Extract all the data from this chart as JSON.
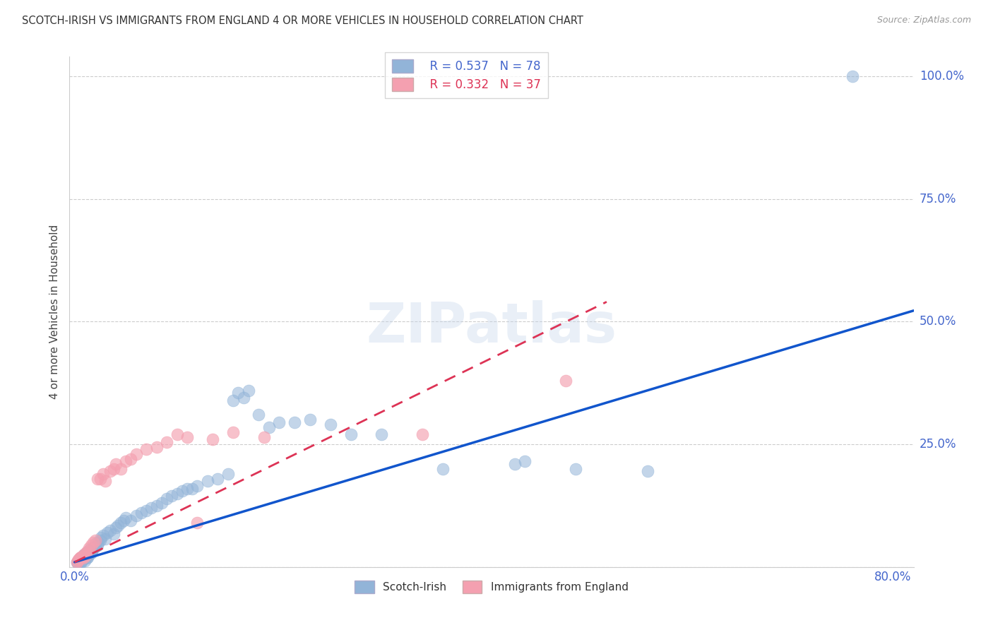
{
  "title": "SCOTCH-IRISH VS IMMIGRANTS FROM ENGLAND 4 OR MORE VEHICLES IN HOUSEHOLD CORRELATION CHART",
  "source": "Source: ZipAtlas.com",
  "ylabel": "4 or more Vehicles in Household",
  "xmin": 0.0,
  "xmax": 0.82,
  "ymin": 0.0,
  "ymax": 1.04,
  "xticks": [
    0.0,
    0.2,
    0.4,
    0.6,
    0.8
  ],
  "xticklabels": [
    "0.0%",
    "",
    "",
    "",
    "80.0%"
  ],
  "yticks": [
    0.0,
    0.25,
    0.5,
    0.75,
    1.0
  ],
  "yticklabels_right": [
    "",
    "25.0%",
    "50.0%",
    "75.0%",
    "100.0%"
  ],
  "legend_r1": "R = 0.537",
  "legend_n1": "N = 78",
  "legend_r2": "R = 0.332",
  "legend_n2": "N = 37",
  "blue_color": "#92B4D8",
  "pink_color": "#F4A0B0",
  "line_blue": "#1155CC",
  "line_pink": "#DD3355",
  "watermark": "ZIPatlas",
  "tick_color": "#4466CC",
  "scotch_irish_x": [
    0.002,
    0.003,
    0.004,
    0.005,
    0.005,
    0.006,
    0.006,
    0.007,
    0.007,
    0.008,
    0.008,
    0.009,
    0.009,
    0.01,
    0.01,
    0.011,
    0.011,
    0.012,
    0.012,
    0.013,
    0.013,
    0.014,
    0.015,
    0.016,
    0.017,
    0.018,
    0.019,
    0.02,
    0.021,
    0.022,
    0.023,
    0.025,
    0.026,
    0.028,
    0.03,
    0.032,
    0.035,
    0.038,
    0.04,
    0.042,
    0.045,
    0.048,
    0.05,
    0.055,
    0.06,
    0.065,
    0.07,
    0.075,
    0.08,
    0.085,
    0.09,
    0.095,
    0.1,
    0.105,
    0.11,
    0.115,
    0.12,
    0.13,
    0.14,
    0.15,
    0.155,
    0.16,
    0.165,
    0.17,
    0.18,
    0.19,
    0.2,
    0.215,
    0.23,
    0.25,
    0.27,
    0.3,
    0.36,
    0.43,
    0.44,
    0.49,
    0.56,
    0.76
  ],
  "scotch_irish_y": [
    0.01,
    0.008,
    0.012,
    0.01,
    0.015,
    0.008,
    0.018,
    0.012,
    0.02,
    0.015,
    0.022,
    0.018,
    0.025,
    0.012,
    0.02,
    0.022,
    0.028,
    0.018,
    0.025,
    0.02,
    0.03,
    0.025,
    0.035,
    0.028,
    0.032,
    0.038,
    0.04,
    0.042,
    0.048,
    0.045,
    0.05,
    0.055,
    0.06,
    0.065,
    0.058,
    0.07,
    0.075,
    0.068,
    0.08,
    0.085,
    0.09,
    0.095,
    0.1,
    0.095,
    0.105,
    0.11,
    0.115,
    0.12,
    0.125,
    0.13,
    0.14,
    0.145,
    0.15,
    0.155,
    0.16,
    0.16,
    0.165,
    0.175,
    0.18,
    0.19,
    0.34,
    0.355,
    0.345,
    0.36,
    0.31,
    0.285,
    0.295,
    0.295,
    0.3,
    0.29,
    0.27,
    0.27,
    0.2,
    0.21,
    0.215,
    0.2,
    0.195,
    1.0
  ],
  "england_x": [
    0.002,
    0.003,
    0.004,
    0.005,
    0.006,
    0.007,
    0.008,
    0.009,
    0.01,
    0.011,
    0.012,
    0.014,
    0.016,
    0.018,
    0.02,
    0.022,
    0.025,
    0.028,
    0.03,
    0.035,
    0.038,
    0.04,
    0.045,
    0.05,
    0.055,
    0.06,
    0.07,
    0.08,
    0.09,
    0.1,
    0.11,
    0.12,
    0.135,
    0.155,
    0.185,
    0.34,
    0.48
  ],
  "england_y": [
    0.01,
    0.012,
    0.015,
    0.018,
    0.02,
    0.022,
    0.018,
    0.025,
    0.022,
    0.028,
    0.032,
    0.038,
    0.045,
    0.05,
    0.055,
    0.18,
    0.18,
    0.19,
    0.175,
    0.195,
    0.2,
    0.21,
    0.2,
    0.215,
    0.22,
    0.23,
    0.24,
    0.245,
    0.255,
    0.27,
    0.265,
    0.09,
    0.26,
    0.275,
    0.265,
    0.27,
    0.38
  ]
}
